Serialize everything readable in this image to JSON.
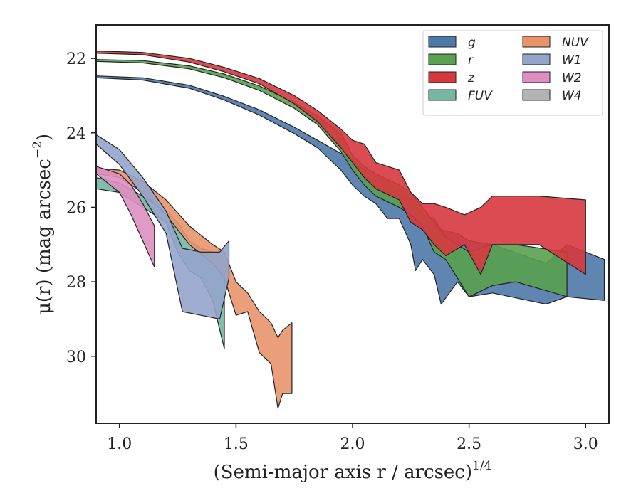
{
  "chart_data": {
    "type": "area",
    "xlabel": "(Semi-major axis r / arcsec)",
    "xlabel_sup": "1/4",
    "ylabel": "μ(r) (mag arcsec",
    "ylabel_sup": "−2",
    "ylabel_end": ")",
    "xlim": [
      0.9,
      3.1
    ],
    "ylim": [
      31.8,
      21.1
    ],
    "y_inverted": true,
    "xticks": [
      1.0,
      1.5,
      2.0,
      2.5,
      3.0
    ],
    "xtick_labels": [
      "1.0",
      "1.5",
      "2.0",
      "2.5",
      "3.0"
    ],
    "yticks": [
      22,
      24,
      26,
      28,
      30
    ],
    "ytick_labels": [
      "22",
      "24",
      "26",
      "28",
      "30"
    ],
    "legend": {
      "placement": "top-right",
      "columns": 2
    },
    "series": [
      {
        "name": "g",
        "color": "#4C79A8",
        "band": [
          [
            0.9,
            22.47,
            22.52
          ],
          [
            1.1,
            22.52,
            22.58
          ],
          [
            1.3,
            22.72,
            22.8
          ],
          [
            1.45,
            23.02,
            23.12
          ],
          [
            1.6,
            23.38,
            23.52
          ],
          [
            1.75,
            23.85,
            24.02
          ],
          [
            1.85,
            24.2,
            24.4
          ],
          [
            1.95,
            24.55,
            25.0
          ],
          [
            2.0,
            24.7,
            25.4
          ],
          [
            2.05,
            25.0,
            25.7
          ],
          [
            2.1,
            25.1,
            25.9
          ],
          [
            2.15,
            25.3,
            26.3
          ],
          [
            2.2,
            25.6,
            26.3
          ],
          [
            2.25,
            25.8,
            27.0
          ],
          [
            2.27,
            25.9,
            27.7
          ],
          [
            2.3,
            26.2,
            27.4
          ],
          [
            2.35,
            26.3,
            27.8
          ],
          [
            2.38,
            26.6,
            28.6
          ],
          [
            2.45,
            26.7,
            28.0
          ],
          [
            2.5,
            26.9,
            28.4
          ],
          [
            2.6,
            27.0,
            28.3
          ],
          [
            2.83,
            27.5,
            28.6
          ],
          [
            2.92,
            27.0,
            28.4
          ],
          [
            3.08,
            27.4,
            28.5
          ]
        ]
      },
      {
        "name": "r",
        "color": "#59A14F",
        "band": [
          [
            0.9,
            22.03,
            22.08
          ],
          [
            1.1,
            22.06,
            22.12
          ],
          [
            1.3,
            22.2,
            22.28
          ],
          [
            1.45,
            22.42,
            22.52
          ],
          [
            1.6,
            22.74,
            22.86
          ],
          [
            1.75,
            23.18,
            23.34
          ],
          [
            1.85,
            23.55,
            23.78
          ],
          [
            1.95,
            24.0,
            24.5
          ],
          [
            2.0,
            24.6,
            25.0
          ],
          [
            2.05,
            24.9,
            25.4
          ],
          [
            2.1,
            25.1,
            25.7
          ],
          [
            2.2,
            25.4,
            26.0
          ],
          [
            2.25,
            25.6,
            26.2
          ],
          [
            2.3,
            26.0,
            26.5
          ],
          [
            2.35,
            26.4,
            27.2
          ],
          [
            2.4,
            26.8,
            27.4
          ],
          [
            2.5,
            27.2,
            28.4
          ],
          [
            2.6,
            27.0,
            28.1
          ],
          [
            2.7,
            27.0,
            28.0
          ],
          [
            2.92,
            27.2,
            28.4
          ]
        ]
      },
      {
        "name": "z",
        "color": "#D6383E",
        "band": [
          [
            0.9,
            21.8,
            21.86
          ],
          [
            1.1,
            21.84,
            21.9
          ],
          [
            1.3,
            22.0,
            22.1
          ],
          [
            1.45,
            22.24,
            22.36
          ],
          [
            1.6,
            22.54,
            22.68
          ],
          [
            1.75,
            23.0,
            23.22
          ],
          [
            1.85,
            23.4,
            23.7
          ],
          [
            1.95,
            23.9,
            24.4
          ],
          [
            2.0,
            24.2,
            24.8
          ],
          [
            2.05,
            24.3,
            25.2
          ],
          [
            2.1,
            24.8,
            25.5
          ],
          [
            2.2,
            25.0,
            25.8
          ],
          [
            2.25,
            25.6,
            26.4
          ],
          [
            2.3,
            25.9,
            26.6
          ],
          [
            2.35,
            25.9,
            27.0
          ],
          [
            2.4,
            26.0,
            27.3
          ],
          [
            2.48,
            26.2,
            27.0
          ],
          [
            2.55,
            26.0,
            27.8
          ],
          [
            2.6,
            25.7,
            27.0
          ],
          [
            2.7,
            25.7,
            27.0
          ],
          [
            2.8,
            25.7,
            27.0
          ],
          [
            3.0,
            25.8,
            27.8
          ]
        ]
      },
      {
        "name": "FUV",
        "color": "#76B7A4",
        "band": [
          [
            0.9,
            25.2,
            25.5
          ],
          [
            1.0,
            25.35,
            25.6
          ],
          [
            1.1,
            25.7,
            26.0
          ],
          [
            1.2,
            26.1,
            26.4
          ],
          [
            1.25,
            26.4,
            27.2
          ],
          [
            1.3,
            26.9,
            27.7
          ],
          [
            1.35,
            27.1,
            27.9
          ],
          [
            1.4,
            27.2,
            28.5
          ],
          [
            1.45,
            27.4,
            29.8
          ]
        ]
      },
      {
        "name": "NUV",
        "color": "#E8936A",
        "band": [
          [
            0.9,
            24.95,
            25.1
          ],
          [
            1.0,
            25.0,
            25.2
          ],
          [
            1.1,
            25.3,
            25.6
          ],
          [
            1.2,
            25.8,
            26.2
          ],
          [
            1.3,
            26.5,
            27.0
          ],
          [
            1.4,
            27.0,
            27.5
          ],
          [
            1.45,
            27.2,
            27.9
          ],
          [
            1.5,
            28.0,
            28.9
          ],
          [
            1.55,
            28.3,
            28.8
          ],
          [
            1.6,
            28.8,
            29.9
          ],
          [
            1.65,
            29.1,
            30.2
          ],
          [
            1.68,
            29.5,
            31.4
          ],
          [
            1.7,
            29.3,
            31.0
          ],
          [
            1.74,
            29.1,
            31.0
          ]
        ]
      },
      {
        "name": "W1",
        "color": "#95A4CB",
        "band": [
          [
            0.9,
            24.05,
            24.3
          ],
          [
            1.0,
            24.45,
            24.85
          ],
          [
            1.1,
            25.2,
            25.7
          ],
          [
            1.2,
            26.1,
            26.7
          ],
          [
            1.27,
            27.1,
            28.8
          ],
          [
            1.35,
            27.2,
            28.9
          ],
          [
            1.43,
            27.2,
            29.0
          ],
          [
            1.47,
            26.9,
            27.9
          ]
        ]
      },
      {
        "name": "W2",
        "color": "#DE8EC0",
        "band": [
          [
            0.9,
            24.9,
            25.1
          ],
          [
            1.0,
            25.1,
            25.6
          ],
          [
            1.05,
            25.4,
            26.2
          ],
          [
            1.1,
            25.9,
            26.9
          ],
          [
            1.15,
            26.5,
            27.6
          ]
        ]
      },
      {
        "name": "W4",
        "color": "#B3B3B3",
        "band": []
      }
    ]
  }
}
